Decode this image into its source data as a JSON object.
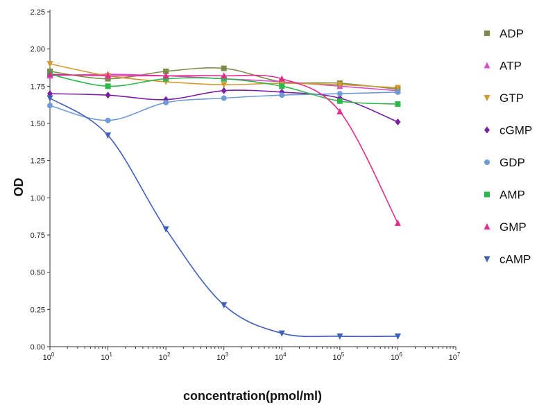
{
  "chart_data": {
    "type": "scatter",
    "title": "",
    "xlabel": "concentration(pmol/ml)",
    "ylabel": "OD",
    "xscale": "log",
    "xlim": [
      1,
      10000000
    ],
    "ylim": [
      0,
      2.25
    ],
    "x_tick_labels": [
      "10",
      "10",
      "10",
      "10",
      "10",
      "10",
      "10",
      "10"
    ],
    "x_tick_exponents": [
      "0",
      "1",
      "2",
      "3",
      "4",
      "5",
      "6",
      "7"
    ],
    "y_tick_labels": [
      "0.00",
      "0.25",
      "0.50",
      "0.75",
      "1.00",
      "1.25",
      "1.50",
      "1.75",
      "2.00",
      "2.25"
    ],
    "y_ticks": [
      0,
      0.25,
      0.5,
      0.75,
      1.0,
      1.25,
      1.5,
      1.75,
      2.0,
      2.25
    ],
    "grid": false,
    "legend_position": "right",
    "x": [
      1,
      10,
      100,
      1000,
      10000,
      100000,
      1000000
    ],
    "series": [
      {
        "name": "ADP",
        "color": "#7b8c46",
        "marker": "square",
        "values": [
          1.85,
          1.8,
          1.85,
          1.87,
          1.78,
          1.77,
          1.73
        ]
      },
      {
        "name": "ATP",
        "color": "#d94fc8",
        "marker": "triangle",
        "values": [
          1.82,
          1.83,
          1.82,
          1.8,
          1.78,
          1.75,
          1.72
        ]
      },
      {
        "name": "GTP",
        "color": "#d49a2e",
        "marker": "tri-down",
        "values": [
          1.9,
          1.82,
          1.78,
          1.76,
          1.77,
          1.76,
          1.74
        ]
      },
      {
        "name": "cGMP",
        "color": "#7b1fa2",
        "marker": "diamond",
        "values": [
          1.7,
          1.69,
          1.66,
          1.72,
          1.71,
          1.67,
          1.51
        ]
      },
      {
        "name": "GDP",
        "color": "#6f9bd4",
        "marker": "circle",
        "values": [
          1.62,
          1.52,
          1.64,
          1.67,
          1.69,
          1.7,
          1.71
        ]
      },
      {
        "name": "AMP",
        "color": "#2eb84b",
        "marker": "square",
        "values": [
          1.83,
          1.75,
          1.8,
          1.8,
          1.75,
          1.65,
          1.63
        ]
      },
      {
        "name": "GMP",
        "color": "#e02c8e",
        "marker": "triangle",
        "values": [
          1.83,
          1.82,
          1.82,
          1.82,
          1.8,
          1.58,
          0.83
        ]
      },
      {
        "name": "cAMP",
        "color": "#3f5fb8",
        "marker": "tri-down",
        "values": [
          1.67,
          1.42,
          0.79,
          0.28,
          0.09,
          0.07,
          0.07
        ]
      }
    ]
  }
}
